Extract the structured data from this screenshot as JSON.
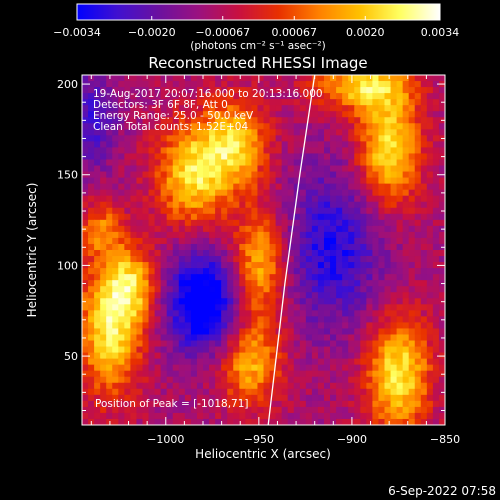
{
  "chart_data": {
    "type": "heatmap",
    "title": "Reconstructed RHESSI Image",
    "xlabel": "Heliocentric X (arcsec)",
    "ylabel": "Heliocentric Y (arcsec)",
    "xlim": [
      -1045,
      -850
    ],
    "ylim": [
      12,
      205
    ],
    "xticks": [
      -1000,
      -950,
      -900,
      -850
    ],
    "yticks": [
      50,
      100,
      150,
      200
    ],
    "xtick_labels": [
      "−1000",
      "−950",
      "−900",
      "−850"
    ],
    "ytick_labels": [
      "50",
      "100",
      "150",
      "200"
    ],
    "colorbar": {
      "min": -0.0034,
      "max": 0.0034,
      "ticks": [
        -0.0034,
        -0.002,
        -0.00067,
        0.00067,
        0.002,
        0.0034
      ],
      "tick_labels": [
        "−0.0034",
        "−0.0020",
        "−0.00067",
        "0.00067",
        "0.0020",
        "0.0034"
      ],
      "unit_label": "(photons cm⁻² s⁻¹ asec⁻²)",
      "colors": [
        "#0000ff",
        "#4010d0",
        "#6a10a0",
        "#9a1080",
        "#c81040",
        "#e83000",
        "#ff8000",
        "#ffc000",
        "#ffff60",
        "#ffffff"
      ]
    },
    "annotations": {
      "time": "19-Aug-2017 20:07:16.000 to 20:13:16.000",
      "detectors": "Detectors: 3F 6F 8F, Att 0",
      "energy": "Energy Range: 25.0 - 50.0 keV",
      "clean": "Clean     Total counts: 1.52E+04",
      "peak": "Position of Peak = [-1018,71]"
    },
    "limb_line": {
      "x": [
        -945,
        -936,
        -928,
        -920
      ],
      "y": [
        12,
        90,
        150,
        205
      ]
    },
    "sources": [
      {
        "x": -1030,
        "y": 65,
        "sigma_x": 12,
        "sigma_y": 26,
        "amplitude": 1.0
      },
      {
        "x": -1018,
        "y": 90,
        "sigma_x": 10,
        "sigma_y": 14,
        "amplitude": 0.7
      },
      {
        "x": -985,
        "y": 150,
        "sigma_x": 14,
        "sigma_y": 20,
        "amplitude": 0.95
      },
      {
        "x": -962,
        "y": 168,
        "sigma_x": 12,
        "sigma_y": 16,
        "amplitude": 0.85
      },
      {
        "x": -950,
        "y": 100,
        "sigma_x": 10,
        "sigma_y": 22,
        "amplitude": 0.8
      },
      {
        "x": -955,
        "y": 45,
        "sigma_x": 12,
        "sigma_y": 16,
        "amplitude": 0.75
      },
      {
        "x": -895,
        "y": 200,
        "sigma_x": 18,
        "sigma_y": 10,
        "amplitude": 0.85
      },
      {
        "x": -880,
        "y": 165,
        "sigma_x": 12,
        "sigma_y": 22,
        "amplitude": 1.0
      },
      {
        "x": -875,
        "y": 40,
        "sigma_x": 12,
        "sigma_y": 22,
        "amplitude": 1.0
      },
      {
        "x": -1035,
        "y": 120,
        "sigma_x": 8,
        "sigma_y": 10,
        "amplitude": 0.55
      },
      {
        "x": -980,
        "y": 80,
        "sigma_x": 14,
        "sigma_y": 20,
        "amplitude": -1.0
      },
      {
        "x": -910,
        "y": 110,
        "sigma_x": 18,
        "sigma_y": 30,
        "amplitude": -0.65
      },
      {
        "x": -1040,
        "y": 180,
        "sigma_x": 10,
        "sigma_y": 18,
        "amplitude": -0.5
      }
    ]
  },
  "footer": {
    "date": "6-Sep-2022 07:58"
  }
}
